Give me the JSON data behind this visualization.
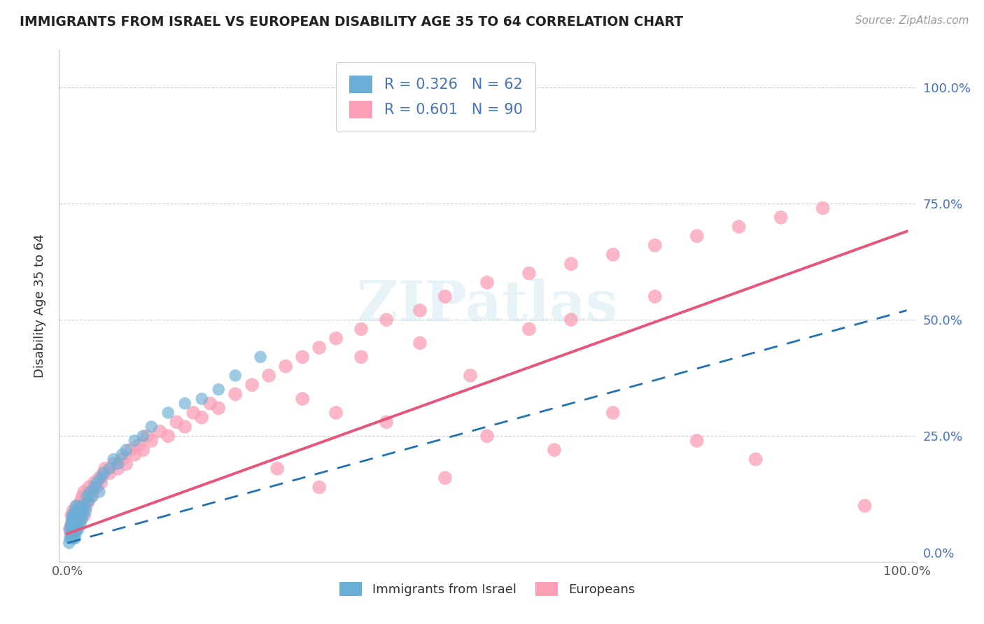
{
  "title": "IMMIGRANTS FROM ISRAEL VS EUROPEAN DISABILITY AGE 35 TO 64 CORRELATION CHART",
  "source": "Source: ZipAtlas.com",
  "ylabel": "Disability Age 35 to 64",
  "israel_R": 0.326,
  "israel_N": 62,
  "european_R": 0.601,
  "european_N": 90,
  "israel_color": "#6baed6",
  "european_color": "#fa9fb5",
  "israel_line_color": "#2171b5",
  "european_line_color": "#e8547a",
  "israel_scatter_x": [
    0.002,
    0.003,
    0.003,
    0.004,
    0.004,
    0.005,
    0.005,
    0.005,
    0.006,
    0.006,
    0.006,
    0.007,
    0.007,
    0.007,
    0.008,
    0.008,
    0.008,
    0.009,
    0.009,
    0.009,
    0.01,
    0.01,
    0.01,
    0.01,
    0.011,
    0.011,
    0.012,
    0.012,
    0.013,
    0.013,
    0.014,
    0.015,
    0.015,
    0.016,
    0.017,
    0.018,
    0.019,
    0.02,
    0.022,
    0.023,
    0.025,
    0.027,
    0.03,
    0.032,
    0.035,
    0.038,
    0.04,
    0.043,
    0.05,
    0.055,
    0.06,
    0.065,
    0.07,
    0.08,
    0.09,
    0.1,
    0.12,
    0.14,
    0.16,
    0.18,
    0.2,
    0.23
  ],
  "israel_scatter_y": [
    0.02,
    0.03,
    0.05,
    0.04,
    0.06,
    0.03,
    0.05,
    0.07,
    0.04,
    0.06,
    0.08,
    0.03,
    0.05,
    0.07,
    0.04,
    0.06,
    0.08,
    0.03,
    0.05,
    0.09,
    0.04,
    0.06,
    0.08,
    0.1,
    0.05,
    0.07,
    0.06,
    0.08,
    0.05,
    0.09,
    0.07,
    0.06,
    0.1,
    0.08,
    0.07,
    0.09,
    0.08,
    0.1,
    0.09,
    0.12,
    0.11,
    0.13,
    0.12,
    0.14,
    0.15,
    0.13,
    0.16,
    0.17,
    0.18,
    0.2,
    0.19,
    0.21,
    0.22,
    0.24,
    0.25,
    0.27,
    0.3,
    0.32,
    0.33,
    0.35,
    0.38,
    0.42
  ],
  "european_scatter_x": [
    0.003,
    0.004,
    0.005,
    0.005,
    0.006,
    0.007,
    0.007,
    0.008,
    0.009,
    0.01,
    0.01,
    0.011,
    0.012,
    0.013,
    0.014,
    0.015,
    0.016,
    0.017,
    0.018,
    0.02,
    0.02,
    0.022,
    0.023,
    0.025,
    0.026,
    0.028,
    0.03,
    0.032,
    0.035,
    0.038,
    0.04,
    0.043,
    0.045,
    0.05,
    0.055,
    0.06,
    0.065,
    0.07,
    0.075,
    0.08,
    0.085,
    0.09,
    0.095,
    0.1,
    0.11,
    0.12,
    0.13,
    0.14,
    0.15,
    0.16,
    0.17,
    0.18,
    0.2,
    0.22,
    0.24,
    0.26,
    0.28,
    0.3,
    0.32,
    0.35,
    0.38,
    0.42,
    0.45,
    0.5,
    0.55,
    0.6,
    0.65,
    0.7,
    0.75,
    0.8,
    0.85,
    0.9,
    0.35,
    0.28,
    0.42,
    0.32,
    0.6,
    0.48,
    0.55,
    0.7,
    0.38,
    0.25,
    0.95,
    0.65,
    0.75,
    0.82,
    0.5,
    0.58,
    0.45,
    0.3
  ],
  "european_scatter_y": [
    0.05,
    0.04,
    0.06,
    0.08,
    0.05,
    0.07,
    0.09,
    0.06,
    0.08,
    0.05,
    0.09,
    0.07,
    0.1,
    0.08,
    0.09,
    0.07,
    0.11,
    0.09,
    0.12,
    0.08,
    0.13,
    0.1,
    0.12,
    0.11,
    0.14,
    0.12,
    0.13,
    0.15,
    0.14,
    0.16,
    0.15,
    0.17,
    0.18,
    0.17,
    0.19,
    0.18,
    0.2,
    0.19,
    0.22,
    0.21,
    0.23,
    0.22,
    0.25,
    0.24,
    0.26,
    0.25,
    0.28,
    0.27,
    0.3,
    0.29,
    0.32,
    0.31,
    0.34,
    0.36,
    0.38,
    0.4,
    0.42,
    0.44,
    0.46,
    0.48,
    0.5,
    0.52,
    0.55,
    0.58,
    0.6,
    0.62,
    0.64,
    0.66,
    0.68,
    0.7,
    0.72,
    0.74,
    0.42,
    0.33,
    0.45,
    0.3,
    0.5,
    0.38,
    0.48,
    0.55,
    0.28,
    0.18,
    0.1,
    0.3,
    0.24,
    0.2,
    0.25,
    0.22,
    0.16,
    0.14
  ],
  "european_line_slope": 0.65,
  "european_line_intercept": 0.04,
  "israel_line_slope": 0.5,
  "israel_line_intercept": 0.02
}
